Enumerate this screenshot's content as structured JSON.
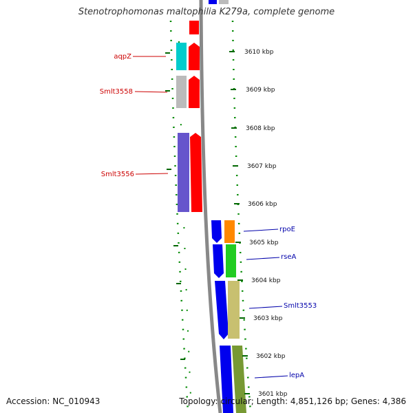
{
  "title": "Stenotrophomonas maltophilia K279a, complete genome",
  "footer": {
    "accession": "Accession: NC_010943",
    "summary": "Topology: circular; Length: 4,851,126 bp; Genes: 4,386"
  },
  "ticks": [
    "3610 kbp",
    "3609 kbp",
    "3608 kbp",
    "3607 kbp",
    "3606 kbp",
    "3605 kbp",
    "3604 kbp",
    "3603 kbp",
    "3602 kbp",
    "3601 kbp"
  ],
  "gene_labels": {
    "left": [
      "aqpZ",
      "Smlt3558",
      "Smlt3556"
    ],
    "right": [
      "rpoE",
      "rseA",
      "Smlt3553",
      "lepA"
    ]
  },
  "colors": {
    "left_label": "#cc0000",
    "right_label": "#0000aa",
    "dots": "#008800",
    "backbone": "#888888",
    "red": "#ff0000",
    "blue": "#0000ee",
    "cyan": "#00cccc",
    "gray": "#bbbbbb",
    "purple": "#6655cc",
    "orange": "#ff8800",
    "green": "#22cc22",
    "khaki": "#c8c070",
    "olive": "#779933"
  }
}
